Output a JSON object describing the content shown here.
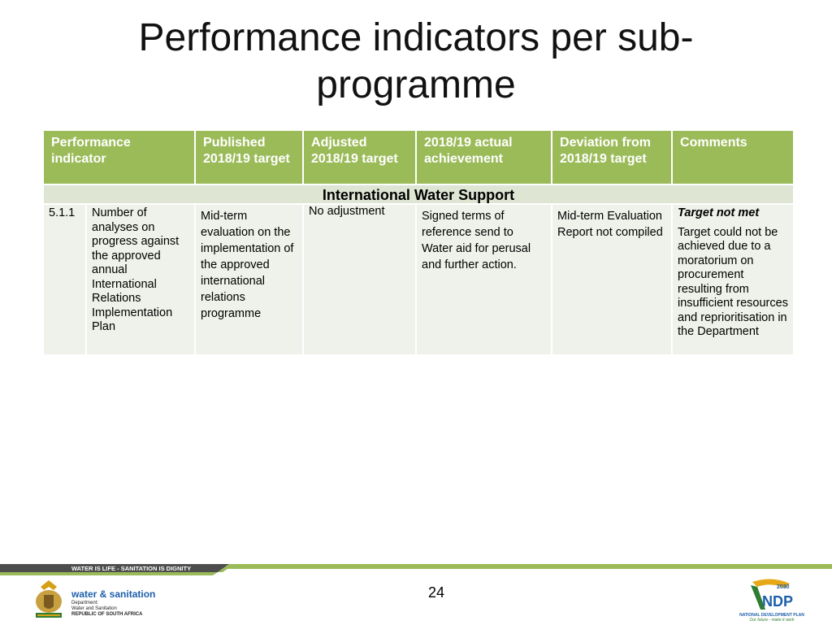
{
  "title": "Performance indicators per sub-programme",
  "table": {
    "headers": [
      "Performance indicator",
      "Published 2018/19 target",
      "Adjusted 2018/19 target",
      "2018/19 actual achievement",
      "Deviation from 2018/19 target",
      "Comments"
    ],
    "section": "International Water Support",
    "rows": [
      {
        "number": "5.1.1",
        "indicator": "Number of analyses on progress against the approved annual International Relations Implementation Plan",
        "published_target": "Mid-term evaluation on the implementation of the approved international relations programme",
        "adjusted_target": "No adjustment",
        "actual_achievement": "Signed terms of reference send to Water aid for perusal and further action.",
        "deviation": "Mid-term Evaluation Report not compiled",
        "comment_heading": "Target not met",
        "comment": "Target could not be achieved due to a moratorium on procurement resulting from insufficient resources and reprioritisation in the Department"
      }
    ]
  },
  "footer": {
    "slogan": "WATER IS LIFE - SANITATION IS DIGNITY",
    "dept_name": "water & sanitation",
    "dept_line1": "Department:",
    "dept_line2": "Water and Sanitation",
    "dept_line3": "REPUBLIC OF SOUTH AFRICA",
    "page_number": "24",
    "ndp_mark": "NDP",
    "ndp_year": "2030",
    "ndp_caption": "NATIONAL DEVELOPMENT PLAN",
    "ndp_tagline": "Our future - make it work"
  },
  "colors": {
    "header_green": "#9bbb59",
    "section_band": "#dee5d3",
    "row_background": "#eff2ea",
    "footer_dark": "#4d4d4d",
    "footer_light": "#9bbb59",
    "brand_blue": "#1d5faa"
  }
}
